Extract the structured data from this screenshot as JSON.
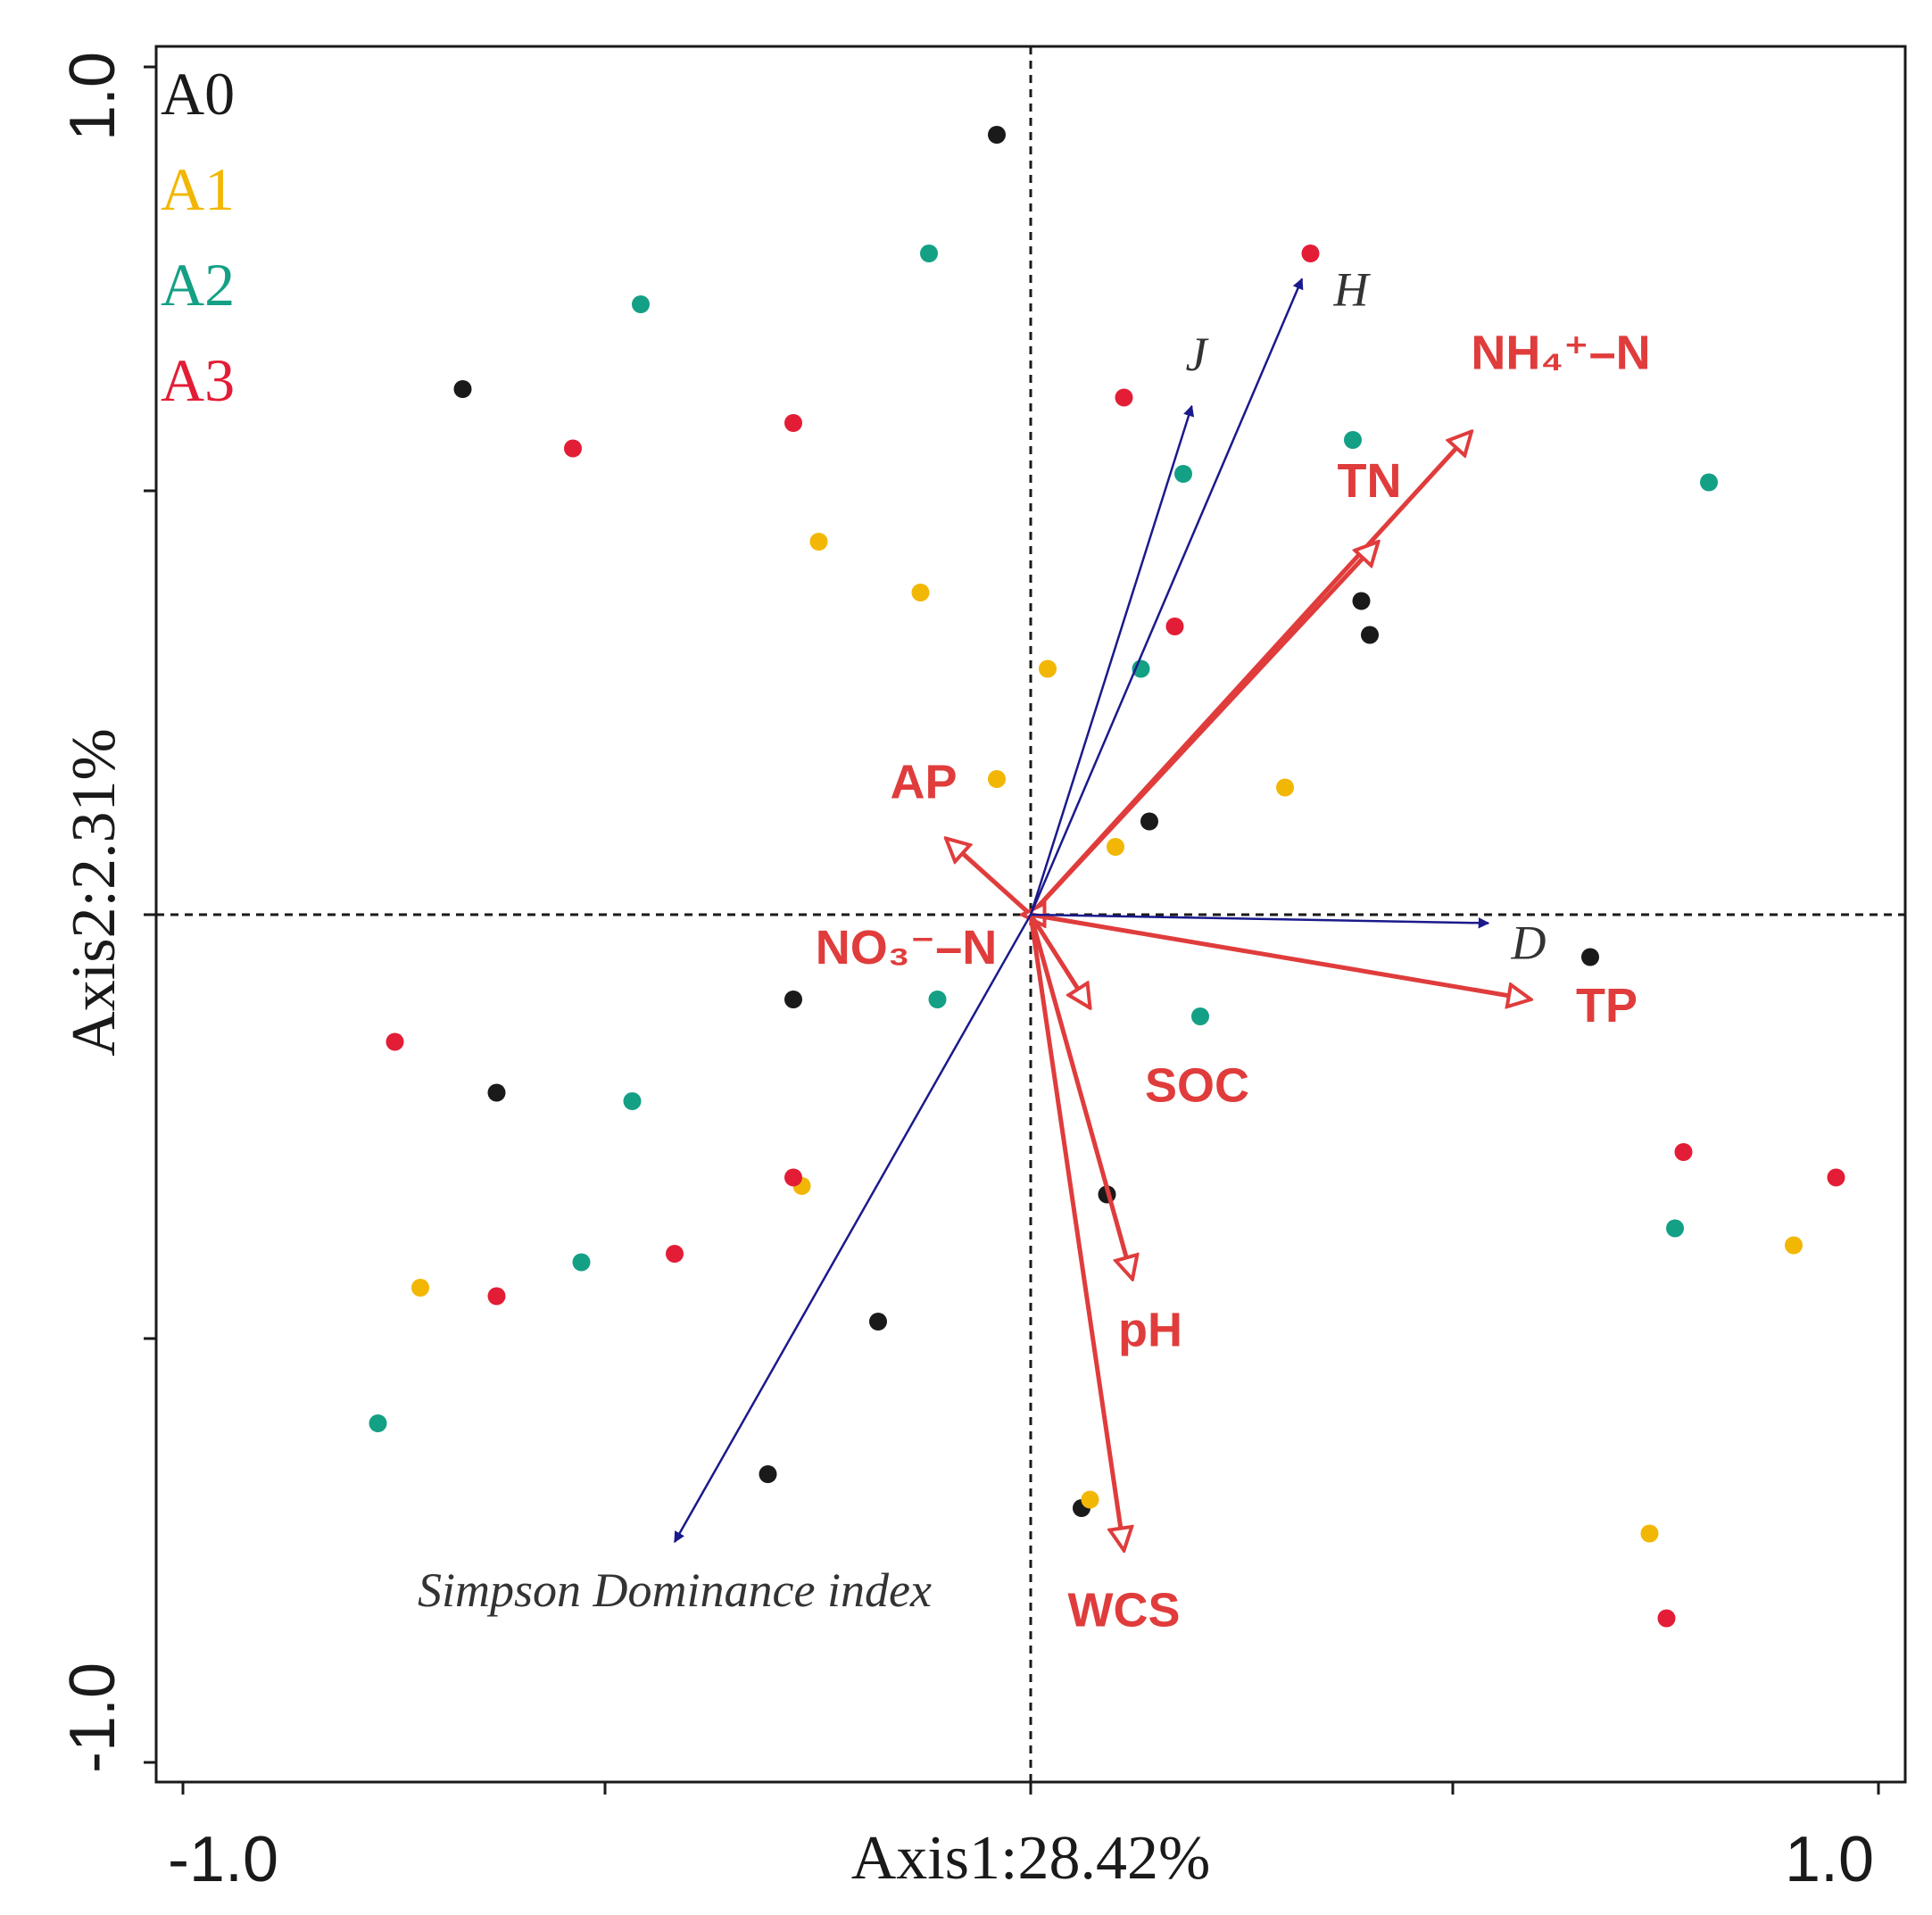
{
  "chart_data": {
    "type": "scatter",
    "subtype": "RDA biplot",
    "xlabel": "Axis1:28.42%",
    "ylabel": "Axis2:2.31%",
    "xlim": [
      -1.0,
      1.0
    ],
    "ylim": [
      -1.0,
      1.0
    ],
    "x_tick_labels": [
      "-1.0",
      "1.0"
    ],
    "y_tick_labels": [
      "1.0",
      "-1.0"
    ],
    "reference_lines": "dashed lines at x = 0 and y = 0",
    "legend": [
      {
        "name": "A0",
        "color": "#1a1a1a"
      },
      {
        "name": "A1",
        "color": "#f2b705"
      },
      {
        "name": "A2",
        "color": "#14a085"
      },
      {
        "name": "A3",
        "color": "#e31d36"
      }
    ],
    "samples": [
      {
        "group": "A0",
        "x": -0.04,
        "y": 0.92
      },
      {
        "group": "A0",
        "x": -0.67,
        "y": 0.62
      },
      {
        "group": "A0",
        "x": 0.39,
        "y": 0.37
      },
      {
        "group": "A0",
        "x": 0.4,
        "y": 0.33
      },
      {
        "group": "A0",
        "x": 0.14,
        "y": 0.11
      },
      {
        "group": "A0",
        "x": 0.66,
        "y": -0.05
      },
      {
        "group": "A0",
        "x": -0.28,
        "y": -0.1
      },
      {
        "group": "A0",
        "x": -0.63,
        "y": -0.21
      },
      {
        "group": "A0",
        "x": 0.09,
        "y": -0.33
      },
      {
        "group": "A0",
        "x": -0.18,
        "y": -0.48
      },
      {
        "group": "A0",
        "x": -0.31,
        "y": -0.66
      },
      {
        "group": "A0",
        "x": 0.06,
        "y": -0.7
      },
      {
        "group": "A1",
        "x": -0.25,
        "y": 0.44
      },
      {
        "group": "A1",
        "x": -0.13,
        "y": 0.38
      },
      {
        "group": "A1",
        "x": 0.02,
        "y": 0.29
      },
      {
        "group": "A1",
        "x": -0.04,
        "y": 0.16
      },
      {
        "group": "A1",
        "x": 0.3,
        "y": 0.15
      },
      {
        "group": "A1",
        "x": 0.1,
        "y": 0.08
      },
      {
        "group": "A1",
        "x": -0.27,
        "y": -0.32
      },
      {
        "group": "A1",
        "x": -0.72,
        "y": -0.44
      },
      {
        "group": "A1",
        "x": 0.07,
        "y": -0.69
      },
      {
        "group": "A1",
        "x": 0.9,
        "y": -0.39
      },
      {
        "group": "A1",
        "x": 0.73,
        "y": -0.73
      },
      {
        "group": "A2",
        "x": -0.12,
        "y": 0.78
      },
      {
        "group": "A2",
        "x": -0.46,
        "y": 0.72
      },
      {
        "group": "A2",
        "x": 0.18,
        "y": 0.52
      },
      {
        "group": "A2",
        "x": 0.38,
        "y": 0.56
      },
      {
        "group": "A2",
        "x": 0.8,
        "y": 0.51
      },
      {
        "group": "A2",
        "x": 0.13,
        "y": 0.29
      },
      {
        "group": "A2",
        "x": -0.11,
        "y": -0.1
      },
      {
        "group": "A2",
        "x": 0.2,
        "y": -0.12
      },
      {
        "group": "A2",
        "x": -0.47,
        "y": -0.22
      },
      {
        "group": "A2",
        "x": -0.53,
        "y": -0.41
      },
      {
        "group": "A2",
        "x": 0.76,
        "y": -0.37
      },
      {
        "group": "A2",
        "x": -0.77,
        "y": -0.6
      },
      {
        "group": "A3",
        "x": 0.33,
        "y": 0.78
      },
      {
        "group": "A3",
        "x": 0.11,
        "y": 0.61
      },
      {
        "group": "A3",
        "x": -0.28,
        "y": 0.58
      },
      {
        "group": "A3",
        "x": -0.54,
        "y": 0.55
      },
      {
        "group": "A3",
        "x": 0.17,
        "y": 0.34
      },
      {
        "group": "A3",
        "x": -0.75,
        "y": -0.15
      },
      {
        "group": "A3",
        "x": -0.28,
        "y": -0.31
      },
      {
        "group": "A3",
        "x": -0.42,
        "y": -0.4
      },
      {
        "group": "A3",
        "x": -0.63,
        "y": -0.45
      },
      {
        "group": "A3",
        "x": 0.77,
        "y": -0.28
      },
      {
        "group": "A3",
        "x": 0.95,
        "y": -0.31
      },
      {
        "group": "A3",
        "x": 0.75,
        "y": -0.83
      }
    ],
    "species_arrows": [
      {
        "name": "H",
        "x": 0.32,
        "y": 0.75
      },
      {
        "name": "J",
        "x": 0.19,
        "y": 0.6
      },
      {
        "name": "D",
        "x": 0.54,
        "y": -0.01
      },
      {
        "name": "Simpson Dominance index",
        "x": -0.42,
        "y": -0.74
      }
    ],
    "environment_arrows": [
      {
        "name": "NH₄⁺–N",
        "x": 0.52,
        "y": 0.57
      },
      {
        "name": "TN",
        "x": 0.41,
        "y": 0.44
      },
      {
        "name": "AP",
        "x": -0.1,
        "y": 0.09
      },
      {
        "name": "NO₃⁻–N",
        "x": -0.01,
        "y": 0.0
      },
      {
        "name": "SOC",
        "x": 0.07,
        "y": -0.11
      },
      {
        "name": "TP",
        "x": 0.59,
        "y": -0.1
      },
      {
        "name": "pH",
        "x": 0.12,
        "y": -0.43
      },
      {
        "name": "WCS",
        "x": 0.11,
        "y": -0.75
      }
    ]
  },
  "colors": {
    "species_arrow": "#1a1a8c",
    "environment_arrow": "#e03c3c",
    "axis": "#1a1a1a"
  }
}
